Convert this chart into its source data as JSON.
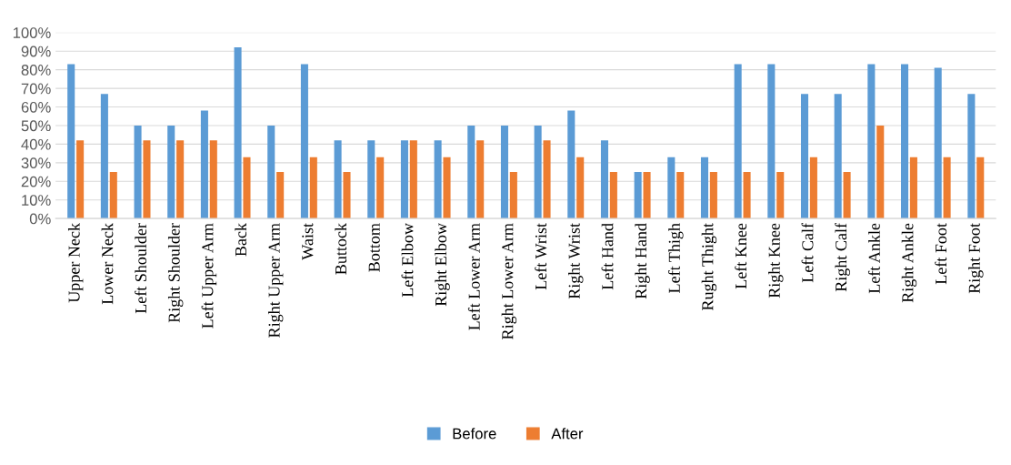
{
  "chart_data": {
    "type": "bar",
    "categories": [
      "Upper Neck",
      "Lower Neck",
      "Left Shoulder",
      "Right Shoulder",
      "Left Upper Arm",
      "Back",
      "Right Upper Arm",
      "Waist",
      "Buttock",
      "Bottom",
      "Left Elbow",
      "Right Elbow",
      "Left Lower Arm",
      "Right Lower Arm",
      "Left Wrist",
      "Right Wrist",
      "Left Hand",
      "Right Hand",
      "Left Thigh",
      "Rught Thight",
      "Left Knee",
      "Right Knee",
      "Left Calf",
      "Right Calf",
      "Left Ankle",
      "Right Ankle",
      "Left Foot",
      "Right Foot"
    ],
    "series": [
      {
        "name": "Before",
        "color": "#5b9bd5",
        "values": [
          83,
          67,
          50,
          50,
          58,
          92,
          50,
          83,
          42,
          42,
          42,
          42,
          50,
          50,
          50,
          58,
          42,
          25,
          33,
          33,
          83,
          83,
          67,
          67,
          83,
          83,
          81,
          67
        ]
      },
      {
        "name": "After",
        "color": "#ed7d31",
        "values": [
          42,
          25,
          42,
          42,
          42,
          33,
          25,
          33,
          25,
          33,
          42,
          33,
          42,
          25,
          42,
          33,
          25,
          25,
          25,
          25,
          25,
          25,
          33,
          25,
          50,
          33,
          33,
          33
        ]
      }
    ],
    "ylim": [
      0,
      100
    ],
    "yticks": [
      {
        "value": 0,
        "label": "0%"
      },
      {
        "value": 10,
        "label": "10%"
      },
      {
        "value": 20,
        "label": "20%"
      },
      {
        "value": 30,
        "label": "30%"
      },
      {
        "value": 40,
        "label": "40%"
      },
      {
        "value": 50,
        "label": "50%"
      },
      {
        "value": 60,
        "label": "60%"
      },
      {
        "value": 70,
        "label": "70%"
      },
      {
        "value": 80,
        "label": "80%"
      },
      {
        "value": 90,
        "label": "90%"
      },
      {
        "value": 100,
        "label": "100%"
      }
    ],
    "grid": "y",
    "legend": "bottom"
  }
}
